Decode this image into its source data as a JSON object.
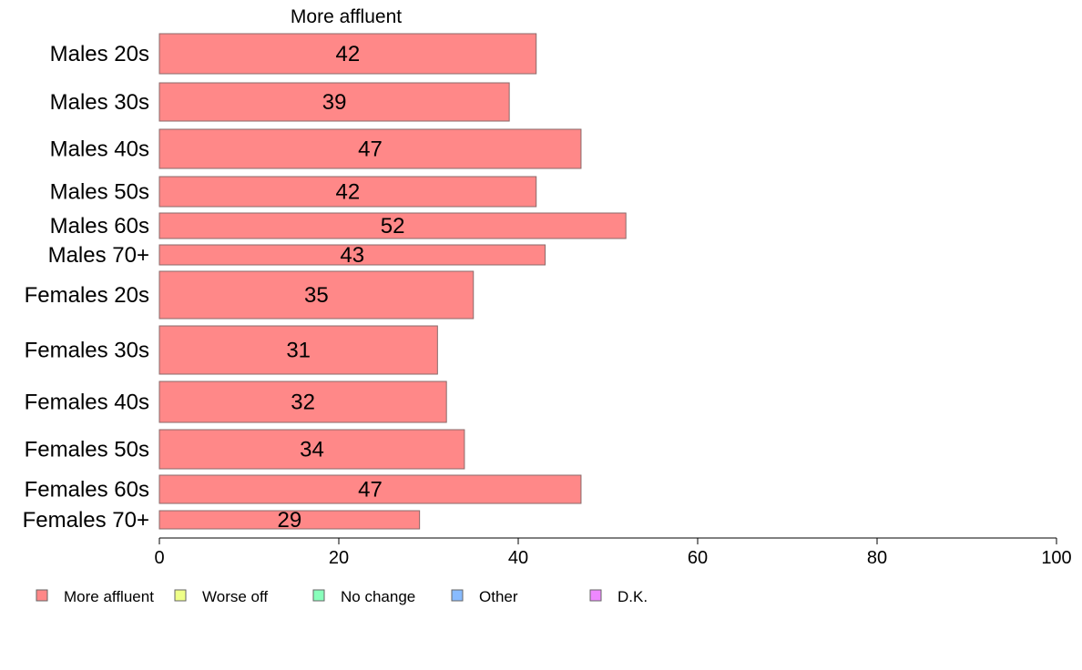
{
  "chart_data": {
    "type": "bar",
    "orientation": "horizontal",
    "title": "More affluent",
    "categories": [
      "Males 20s",
      "Males 30s",
      "Males 40s",
      "Males 50s",
      "Males 60s",
      "Males 70+",
      "Females 20s",
      "Females 30s",
      "Females 40s",
      "Females 50s",
      "Females 60s",
      "Females 70+"
    ],
    "series": [
      {
        "name": "More affluent",
        "values": [
          42,
          39,
          47,
          42,
          52,
          43,
          35,
          31,
          32,
          34,
          47,
          29
        ]
      }
    ],
    "xlim": [
      0,
      100
    ],
    "xticks": [
      0,
      20,
      40,
      60,
      80,
      100
    ],
    "grid": false,
    "legend": {
      "placement": "bottom-left",
      "entries": [
        {
          "label": "More affluent",
          "color": "#ff8888"
        },
        {
          "label": "Worse off",
          "color": "#eeff88"
        },
        {
          "label": "No change",
          "color": "#88ffbb"
        },
        {
          "label": "Other",
          "color": "#88bbff"
        },
        {
          "label": "D.K.",
          "color": "#ee88ff"
        }
      ]
    },
    "colors": {
      "bar": "#ff8888",
      "bar_stroke": "#8a6a6a"
    }
  }
}
